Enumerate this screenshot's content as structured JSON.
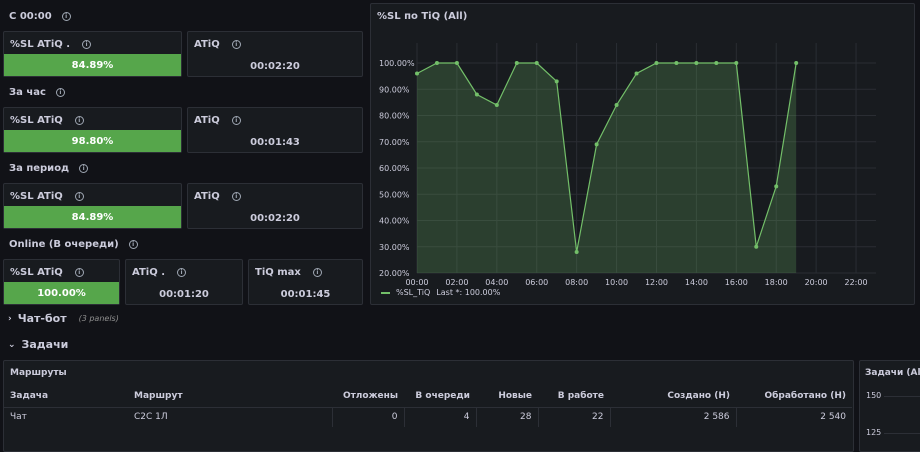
{
  "rows": {
    "c0000": {
      "title": "С 00:00",
      "sl_title": "%SL ATiQ .",
      "sl_value": "84.89%",
      "sl_fill": 1.0,
      "atiq_title": "ATiQ",
      "atiq_value": "00:02:20"
    },
    "hour": {
      "title": "За час",
      "sl_title": "%SL ATiQ",
      "sl_value": "98.80%",
      "sl_fill": 1.0,
      "atiq_title": "ATiQ",
      "atiq_value": "00:01:43"
    },
    "period": {
      "title": "За период",
      "sl_title": "%SL ATiQ",
      "sl_value": "84.89%",
      "sl_fill": 1.0,
      "atiq_title": "ATiQ",
      "atiq_value": "00:02:20"
    },
    "online": {
      "title": "Online (В очереди)",
      "sl_title": "%SL ATiQ",
      "sl_value": "100.00%",
      "sl_fill": 1.0,
      "atiq_title": "ATiQ .",
      "atiq_value": "00:01:20",
      "tiq_title": "TiQ max",
      "tiq_value": "00:01:45"
    }
  },
  "chart_panel": {
    "title": "%SL по TiQ (All)",
    "legend_label": "%SL_TiQ",
    "legend_last": "Last *: 100.00%",
    "color": "#73bf69"
  },
  "chart_data": {
    "type": "area",
    "series": [
      {
        "name": "%SL_TiQ",
        "x": [
          "00:00",
          "01:00",
          "02:00",
          "03:00",
          "04:00",
          "05:00",
          "06:00",
          "07:00",
          "08:00",
          "09:00",
          "10:00",
          "11:00",
          "12:00",
          "13:00",
          "14:00",
          "15:00",
          "16:00",
          "17:00",
          "18:00",
          "19:00"
        ],
        "values": [
          96,
          100,
          100,
          88,
          84,
          100,
          100,
          93,
          28,
          69,
          84,
          96,
          100,
          100,
          100,
          100,
          100,
          30,
          53,
          100
        ]
      }
    ],
    "x_ticks": [
      "00:00",
      "02:00",
      "04:00",
      "06:00",
      "08:00",
      "10:00",
      "12:00",
      "14:00",
      "16:00",
      "18:00",
      "20:00",
      "22:00"
    ],
    "y_ticks": [
      "20.00%",
      "30.00%",
      "40.00%",
      "50.00%",
      "60.00%",
      "70.00%",
      "80.00%",
      "90.00%",
      "100.00%"
    ],
    "ylim": [
      20,
      100
    ],
    "xlim": [
      0,
      23
    ],
    "grid": true,
    "legend": "bottom-left"
  },
  "sections": {
    "chatbot": {
      "title": "Чат-бот",
      "sub": "(3 panels)"
    },
    "tasks": {
      "title": "Задачи"
    }
  },
  "routes_panel": {
    "title": "Маршруты",
    "headers": [
      "Задача",
      "Маршрут",
      "Отложены",
      "В очереди",
      "Новые",
      "В работе",
      "Создано (Н)",
      "Обработано (Н)"
    ],
    "rows": [
      [
        "Чат",
        "С2С 1Л",
        "0",
        "4",
        "28",
        "22",
        "2 586",
        "2 540"
      ]
    ]
  },
  "tasks_side_panel": {
    "title": "Задачи (All)",
    "y_ticks": [
      "150",
      "125"
    ]
  },
  "colors": {
    "background": "#111217",
    "panel": "#181b1f",
    "border": "#2c2f36",
    "green": "#56a64b"
  }
}
